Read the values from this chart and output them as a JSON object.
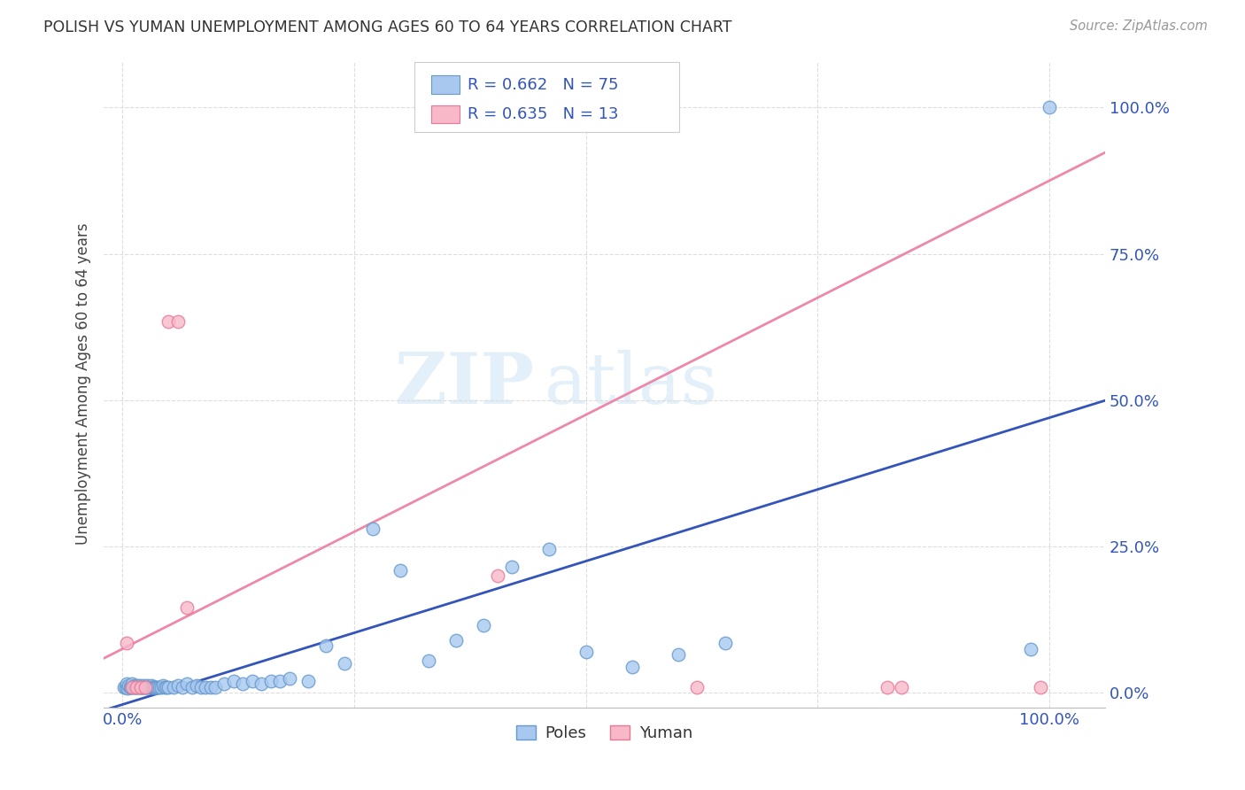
{
  "title": "POLISH VS YUMAN UNEMPLOYMENT AMONG AGES 60 TO 64 YEARS CORRELATION CHART",
  "source": "Source: ZipAtlas.com",
  "ylabel": "Unemployment Among Ages 60 to 64 years",
  "background_color": "#ffffff",
  "watermark_line1": "ZIP",
  "watermark_line2": "atlas",
  "poles_color": "#a8c8f0",
  "poles_edge_color": "#6699cc",
  "yuman_color": "#f8b8c8",
  "yuman_edge_color": "#e87898",
  "poles_line_color": "#3355bb",
  "yuman_line_color": "#ee88aa",
  "text_color": "#3355bb",
  "poles_R": "0.662",
  "poles_N": "75",
  "yuman_R": "0.635",
  "yuman_N": "13",
  "poles_legend": "Poles",
  "yuman_legend": "Yuman",
  "xlim": [
    -0.02,
    1.06
  ],
  "ylim": [
    -0.025,
    1.08
  ],
  "xtick_positions": [
    0.0,
    1.0
  ],
  "xtick_labels": [
    "0.0%",
    "100.0%"
  ],
  "ytick_positions": [
    0.0,
    0.25,
    0.5,
    0.75,
    1.0
  ],
  "ytick_labels": [
    "0.0%",
    "25.0%",
    "50.0%",
    "75.0%",
    "100.0%"
  ],
  "poles_line_slope": 0.49,
  "poles_line_intercept": -0.02,
  "yuman_line_slope": 0.8,
  "yuman_line_intercept": 0.075,
  "poles_scatter_x": [
    0.002,
    0.004,
    0.005,
    0.006,
    0.007,
    0.008,
    0.009,
    0.01,
    0.011,
    0.012,
    0.013,
    0.014,
    0.015,
    0.016,
    0.017,
    0.018,
    0.019,
    0.02,
    0.021,
    0.022,
    0.023,
    0.024,
    0.025,
    0.026,
    0.027,
    0.028,
    0.029,
    0.03,
    0.031,
    0.032,
    0.033,
    0.034,
    0.035,
    0.036,
    0.038,
    0.04,
    0.042,
    0.044,
    0.046,
    0.048,
    0.05,
    0.055,
    0.06,
    0.065,
    0.07,
    0.075,
    0.08,
    0.085,
    0.09,
    0.095,
    0.1,
    0.11,
    0.12,
    0.13,
    0.14,
    0.15,
    0.16,
    0.17,
    0.18,
    0.2,
    0.22,
    0.24,
    0.27,
    0.3,
    0.33,
    0.36,
    0.39,
    0.42,
    0.46,
    0.5,
    0.55,
    0.6,
    0.65,
    0.98,
    1.0
  ],
  "poles_scatter_y": [
    0.01,
    0.01,
    0.015,
    0.008,
    0.012,
    0.01,
    0.01,
    0.015,
    0.01,
    0.01,
    0.012,
    0.01,
    0.01,
    0.012,
    0.01,
    0.01,
    0.012,
    0.01,
    0.01,
    0.01,
    0.012,
    0.01,
    0.01,
    0.01,
    0.012,
    0.01,
    0.01,
    0.01,
    0.012,
    0.01,
    0.01,
    0.01,
    0.01,
    0.01,
    0.01,
    0.01,
    0.01,
    0.012,
    0.01,
    0.01,
    0.01,
    0.01,
    0.012,
    0.01,
    0.015,
    0.01,
    0.012,
    0.01,
    0.01,
    0.01,
    0.01,
    0.015,
    0.02,
    0.015,
    0.02,
    0.015,
    0.02,
    0.02,
    0.025,
    0.02,
    0.08,
    0.05,
    0.28,
    0.21,
    0.055,
    0.09,
    0.115,
    0.215,
    0.245,
    0.07,
    0.045,
    0.065,
    0.085,
    0.075,
    1.0
  ],
  "yuman_scatter_x": [
    0.005,
    0.01,
    0.015,
    0.02,
    0.025,
    0.05,
    0.06,
    0.07,
    0.405,
    0.62,
    0.825,
    0.84,
    0.99
  ],
  "yuman_scatter_y": [
    0.085,
    0.01,
    0.01,
    0.01,
    0.01,
    0.635,
    0.635,
    0.145,
    0.2,
    0.01,
    0.01,
    0.01,
    0.01
  ]
}
